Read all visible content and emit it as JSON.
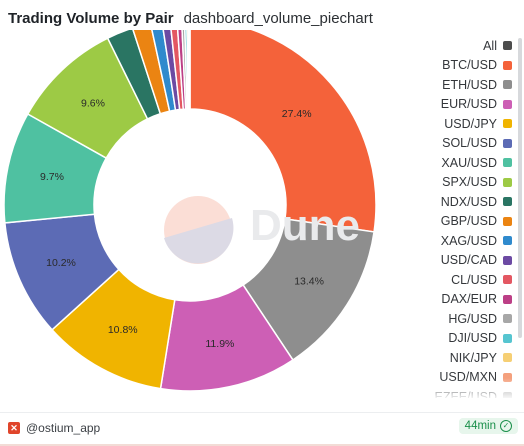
{
  "header": {
    "title": "Trading Volume by Pair",
    "query_name": "dashboard_volume_piechart"
  },
  "chart_data": {
    "type": "pie",
    "donut": true,
    "legend_position": "right",
    "watermark": "Dune",
    "legend_entries": [
      "All",
      "BTC/USD",
      "ETH/USD",
      "EUR/USD",
      "USD/JPY",
      "SOL/USD",
      "XAU/USD",
      "SPX/USD",
      "NDX/USD",
      "GBP/USD",
      "XAG/USD",
      "USD/CAD",
      "CL/USD",
      "DAX/EUR",
      "HG/USD",
      "DJI/USD",
      "NIK/JPY",
      "USD/MXN",
      "EZEE/USD"
    ],
    "slices": [
      {
        "label": "BTC/USD",
        "value": 27.4,
        "display": "27.4%",
        "color": "#f4623a"
      },
      {
        "label": "ETH/USD",
        "value": 13.4,
        "display": "13.4%",
        "color": "#8e8e8e"
      },
      {
        "label": "EUR/USD",
        "value": 11.9,
        "display": "11.9%",
        "color": "#cd5fb5"
      },
      {
        "label": "USD/JPY",
        "value": 10.8,
        "display": "10.8%",
        "color": "#f0b400"
      },
      {
        "label": "SOL/USD",
        "value": 10.2,
        "display": "10.2%",
        "color": "#5c6bb5"
      },
      {
        "label": "XAU/USD",
        "value": 9.7,
        "display": "9.7%",
        "color": "#4fc1a1"
      },
      {
        "label": "SPX/USD",
        "value": 9.6,
        "display": "9.6%",
        "color": "#9dca45"
      },
      {
        "label": "NDX/USD",
        "value": 2.3,
        "display": "",
        "color": "#2a7563"
      },
      {
        "label": "GBP/USD",
        "value": 1.6,
        "display": "",
        "color": "#eb8412"
      },
      {
        "label": "XAG/USD",
        "value": 1.0,
        "display": "",
        "color": "#2f8acd"
      },
      {
        "label": "USD/CAD",
        "value": 0.7,
        "display": "",
        "color": "#6c4aa3"
      },
      {
        "label": "CL/USD",
        "value": 0.6,
        "display": "",
        "color": "#e35762"
      },
      {
        "label": "DAX/EUR",
        "value": 0.4,
        "display": "",
        "color": "#bc3f86"
      },
      {
        "label": "HG/USD",
        "value": 0.25,
        "display": "",
        "color": "#a7a7a7"
      },
      {
        "label": "DJI/USD",
        "value": 0.2,
        "display": "",
        "color": "#56c5d0"
      },
      {
        "label": "NIK/JPY",
        "value": 0.15,
        "display": "",
        "color": "#f6cf74"
      },
      {
        "label": "USD/MXN",
        "value": 0.12,
        "display": "",
        "color": "#f4a07d"
      }
    ],
    "legend_colors": {
      "All": "#4d4d4d",
      "EZEE/USD": "#9c9c9c"
    }
  },
  "footer": {
    "author": "@ostium_app",
    "author_icon": "dune-logo-icon",
    "age": "44min",
    "status_icon": "check-circle-icon",
    "status_color": "#1a8f4a"
  }
}
